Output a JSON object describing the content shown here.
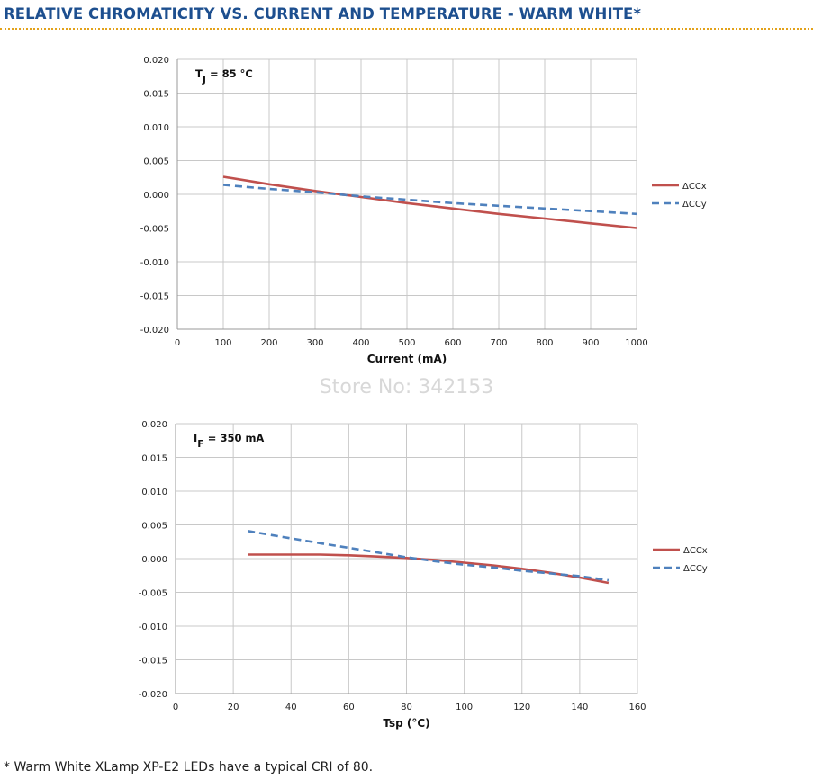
{
  "title": "RELATIVE CHROMATICITY VS. CURRENT AND TEMPERATURE - WARM WHITE*",
  "watermark": "Store No: 342153",
  "footnote": "* Warm White XLamp XP-E2 LEDs have a typical CRI of 80.",
  "colors": {
    "title": "#1d4f8f",
    "rule": "#e3a21a",
    "ccx": "#c0504d",
    "ccy": "#4f81bd",
    "grid": "#c8c8c8"
  },
  "chart_data": [
    {
      "type": "line",
      "annotation": {
        "main": "T",
        "sub": "J",
        "rest": " = 85 °C"
      },
      "xlabel": "Current (mA)",
      "ylabel": "",
      "xlim": [
        0,
        1000
      ],
      "xticks": [
        0,
        100,
        200,
        300,
        400,
        500,
        600,
        700,
        800,
        900,
        1000
      ],
      "xtick_labels": [
        "0",
        "100",
        "200",
        "300",
        "400",
        "500",
        "600",
        "700",
        "800",
        "900",
        "1000"
      ],
      "ylim": [
        -0.02,
        0.02
      ],
      "yticks": [
        -0.02,
        -0.015,
        -0.01,
        -0.005,
        0,
        0.005,
        0.01,
        0.015,
        0.02
      ],
      "ytick_labels": [
        "-0.020",
        "-0.015",
        "-0.010",
        "-0.005",
        "0.000",
        "0.005",
        "0.010",
        "0.015",
        "0.020"
      ],
      "grid": true,
      "legend_position": "right",
      "series": [
        {
          "name": "ΔCCx",
          "style": "solid",
          "x": [
            100,
            200,
            300,
            400,
            500,
            600,
            700,
            800,
            900,
            1000
          ],
          "y": [
            0.0026,
            0.0015,
            0.0005,
            -0.0004,
            -0.0013,
            -0.0021,
            -0.0029,
            -0.0036,
            -0.0043,
            -0.005
          ]
        },
        {
          "name": "ΔCCy",
          "style": "dashed",
          "x": [
            100,
            200,
            300,
            400,
            500,
            600,
            700,
            800,
            900,
            1000
          ],
          "y": [
            0.0014,
            0.0008,
            0.0003,
            -0.0003,
            -0.0008,
            -0.0013,
            -0.0017,
            -0.0021,
            -0.0025,
            -0.0029
          ]
        }
      ]
    },
    {
      "type": "line",
      "annotation": {
        "main": "I",
        "sub": "F",
        "rest": " = 350 mA"
      },
      "xlabel": "Tsp (°C)",
      "ylabel": "",
      "xlim": [
        0,
        160
      ],
      "xticks": [
        0,
        20,
        40,
        60,
        80,
        100,
        120,
        140,
        160
      ],
      "xtick_labels": [
        "0",
        "20",
        "40",
        "60",
        "80",
        "100",
        "120",
        "140",
        "160"
      ],
      "ylim": [
        -0.02,
        0.02
      ],
      "yticks": [
        -0.02,
        -0.015,
        -0.01,
        -0.005,
        0,
        0.005,
        0.01,
        0.015,
        0.02
      ],
      "ytick_labels": [
        "-0.020",
        "-0.015",
        "-0.010",
        "-0.005",
        "0.000",
        "0.005",
        "0.010",
        "0.015",
        "0.020"
      ],
      "grid": true,
      "legend_position": "right",
      "series": [
        {
          "name": "ΔCCx",
          "style": "solid",
          "x": [
            25,
            40,
            50,
            60,
            70,
            80,
            90,
            100,
            110,
            120,
            130,
            140,
            150
          ],
          "y": [
            0.0006,
            0.0006,
            0.0006,
            0.0005,
            0.0003,
            0.0001,
            -0.0002,
            -0.0006,
            -0.001,
            -0.0015,
            -0.0021,
            -0.0028,
            -0.0036
          ]
        },
        {
          "name": "ΔCCy",
          "style": "dashed",
          "x": [
            25,
            40,
            50,
            60,
            70,
            80,
            90,
            100,
            110,
            120,
            130,
            140,
            150
          ],
          "y": [
            0.0041,
            0.003,
            0.0023,
            0.0016,
            0.0009,
            0.0002,
            -0.0004,
            -0.0009,
            -0.0013,
            -0.0018,
            -0.0022,
            -0.0026,
            -0.0032
          ]
        }
      ]
    }
  ]
}
